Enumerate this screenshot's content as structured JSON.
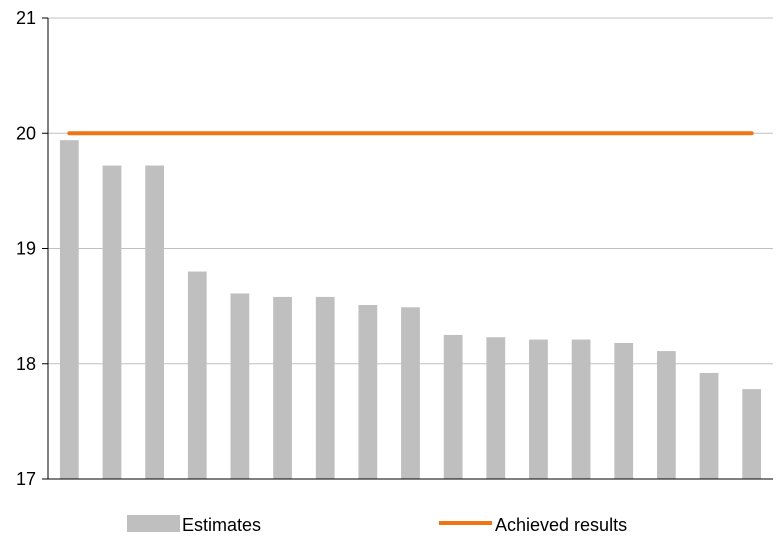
{
  "chart_data": {
    "type": "bar",
    "title": "",
    "xlabel": "",
    "ylabel": "",
    "ylim": [
      17,
      21
    ],
    "yticks": [
      17,
      18,
      19,
      20,
      21
    ],
    "grid": true,
    "legend_position": "bottom",
    "categories": [
      "",
      "",
      "",
      "",
      "",
      "",
      "",
      "",
      "",
      "",
      "",
      "",
      "",
      "",
      "",
      "",
      ""
    ],
    "series": [
      {
        "name": "Estimates",
        "type": "bar",
        "color": "#bfbfbf",
        "values": [
          19.94,
          19.72,
          19.72,
          18.8,
          18.61,
          18.58,
          18.58,
          18.51,
          18.49,
          18.25,
          18.23,
          18.21,
          18.21,
          18.18,
          18.11,
          17.92,
          17.78
        ]
      },
      {
        "name": "Achieved results",
        "type": "line",
        "color": "#f07314",
        "values": [
          20.0,
          20.0,
          20.0,
          20.0,
          20.0,
          20.0,
          20.0,
          20.0,
          20.0,
          20.0,
          20.0,
          20.0,
          20.0,
          20.0,
          20.0,
          20.0,
          20.0
        ]
      }
    ]
  }
}
